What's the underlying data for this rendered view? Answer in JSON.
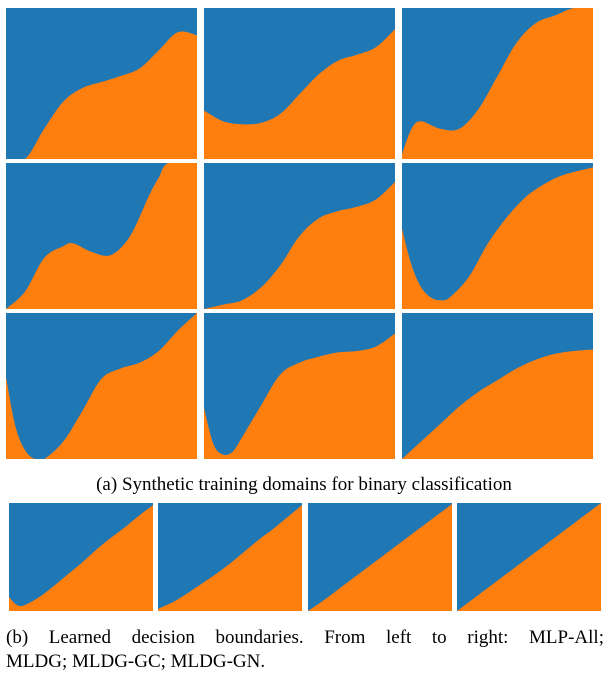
{
  "colors": {
    "class_a": "#1f77b4",
    "class_b": "#ff7f0e"
  },
  "figure_a": {
    "caption": "(a) Synthetic training domains for binary classification",
    "rows": 3,
    "cols": 3,
    "panels": [
      {
        "boundary": [
          [
            0,
            0.0
          ],
          [
            0.1,
            0.0
          ],
          [
            0.2,
            0.2
          ],
          [
            0.3,
            0.38
          ],
          [
            0.4,
            0.47
          ],
          [
            0.5,
            0.51
          ],
          [
            0.6,
            0.55
          ],
          [
            0.7,
            0.6
          ],
          [
            0.8,
            0.72
          ],
          [
            0.9,
            0.84
          ],
          [
            1.0,
            0.82
          ]
        ]
      },
      {
        "boundary": [
          [
            0,
            0.32
          ],
          [
            0.1,
            0.25
          ],
          [
            0.2,
            0.23
          ],
          [
            0.3,
            0.24
          ],
          [
            0.4,
            0.3
          ],
          [
            0.5,
            0.43
          ],
          [
            0.6,
            0.56
          ],
          [
            0.7,
            0.65
          ],
          [
            0.8,
            0.69
          ],
          [
            0.9,
            0.74
          ],
          [
            1.0,
            0.86
          ]
        ]
      },
      {
        "boundary": [
          [
            0,
            0.03
          ],
          [
            0.05,
            0.2
          ],
          [
            0.1,
            0.25
          ],
          [
            0.2,
            0.2
          ],
          [
            0.3,
            0.2
          ],
          [
            0.4,
            0.33
          ],
          [
            0.5,
            0.55
          ],
          [
            0.6,
            0.77
          ],
          [
            0.7,
            0.9
          ],
          [
            0.8,
            0.95
          ],
          [
            0.9,
            1.0
          ],
          [
            1.0,
            1.0
          ]
        ]
      },
      {
        "boundary": [
          [
            0,
            0.0
          ],
          [
            0.1,
            0.12
          ],
          [
            0.2,
            0.35
          ],
          [
            0.3,
            0.43
          ],
          [
            0.35,
            0.45
          ],
          [
            0.45,
            0.39
          ],
          [
            0.55,
            0.37
          ],
          [
            0.65,
            0.5
          ],
          [
            0.75,
            0.78
          ],
          [
            0.8,
            0.9
          ],
          [
            0.85,
            1.0
          ],
          [
            1.0,
            1.0
          ]
        ]
      },
      {
        "boundary": [
          [
            0,
            0.0
          ],
          [
            0.1,
            0.03
          ],
          [
            0.2,
            0.06
          ],
          [
            0.3,
            0.15
          ],
          [
            0.4,
            0.3
          ],
          [
            0.5,
            0.5
          ],
          [
            0.6,
            0.62
          ],
          [
            0.7,
            0.67
          ],
          [
            0.8,
            0.7
          ],
          [
            0.9,
            0.75
          ],
          [
            1.0,
            0.87
          ]
        ]
      },
      {
        "boundary": [
          [
            0,
            0.55
          ],
          [
            0.05,
            0.3
          ],
          [
            0.1,
            0.15
          ],
          [
            0.15,
            0.08
          ],
          [
            0.2,
            0.06
          ],
          [
            0.25,
            0.08
          ],
          [
            0.35,
            0.22
          ],
          [
            0.45,
            0.45
          ],
          [
            0.55,
            0.63
          ],
          [
            0.65,
            0.77
          ],
          [
            0.75,
            0.86
          ],
          [
            0.85,
            0.92
          ],
          [
            1.0,
            0.97
          ]
        ]
      },
      {
        "boundary": [
          [
            0,
            0.56
          ],
          [
            0.05,
            0.22
          ],
          [
            0.1,
            0.06
          ],
          [
            0.15,
            0.0
          ],
          [
            0.2,
            0.0
          ],
          [
            0.3,
            0.12
          ],
          [
            0.4,
            0.33
          ],
          [
            0.5,
            0.55
          ],
          [
            0.6,
            0.62
          ],
          [
            0.7,
            0.66
          ],
          [
            0.8,
            0.74
          ],
          [
            0.9,
            0.88
          ],
          [
            1.0,
            1.0
          ]
        ]
      },
      {
        "boundary": [
          [
            0,
            0.35
          ],
          [
            0.05,
            0.1
          ],
          [
            0.1,
            0.03
          ],
          [
            0.15,
            0.05
          ],
          [
            0.2,
            0.15
          ],
          [
            0.3,
            0.37
          ],
          [
            0.4,
            0.58
          ],
          [
            0.5,
            0.66
          ],
          [
            0.6,
            0.7
          ],
          [
            0.7,
            0.73
          ],
          [
            0.8,
            0.74
          ],
          [
            0.9,
            0.77
          ],
          [
            1.0,
            0.86
          ]
        ]
      },
      {
        "boundary": [
          [
            0,
            0.0
          ],
          [
            0.1,
            0.12
          ],
          [
            0.2,
            0.24
          ],
          [
            0.3,
            0.36
          ],
          [
            0.4,
            0.46
          ],
          [
            0.5,
            0.54
          ],
          [
            0.6,
            0.62
          ],
          [
            0.7,
            0.68
          ],
          [
            0.8,
            0.72
          ],
          [
            0.9,
            0.74
          ],
          [
            1.0,
            0.75
          ]
        ]
      }
    ]
  },
  "figure_b": {
    "caption_line1": "(b) Learned decision boundaries. From left to right: MLP-All;",
    "caption_line2": "MLDG; MLDG-GC; MLDG-GN.",
    "panels": [
      {
        "boundary": [
          [
            0,
            0.13
          ],
          [
            0.05,
            0.06
          ],
          [
            0.1,
            0.05
          ],
          [
            0.2,
            0.12
          ],
          [
            0.3,
            0.22
          ],
          [
            0.4,
            0.33
          ],
          [
            0.5,
            0.44
          ],
          [
            0.6,
            0.56
          ],
          [
            0.7,
            0.67
          ],
          [
            0.8,
            0.77
          ],
          [
            0.9,
            0.88
          ],
          [
            1.0,
            0.98
          ]
        ]
      },
      {
        "boundary": [
          [
            0,
            0.02
          ],
          [
            0.1,
            0.08
          ],
          [
            0.2,
            0.16
          ],
          [
            0.3,
            0.25
          ],
          [
            0.4,
            0.34
          ],
          [
            0.5,
            0.44
          ],
          [
            0.6,
            0.55
          ],
          [
            0.7,
            0.66
          ],
          [
            0.8,
            0.76
          ],
          [
            0.9,
            0.87
          ],
          [
            1.0,
            0.98
          ]
        ]
      },
      {
        "boundary": [
          [
            0,
            0.0
          ],
          [
            0.1,
            0.09
          ],
          [
            0.2,
            0.19
          ],
          [
            0.3,
            0.29
          ],
          [
            0.4,
            0.39
          ],
          [
            0.5,
            0.49
          ],
          [
            0.6,
            0.59
          ],
          [
            0.7,
            0.69
          ],
          [
            0.8,
            0.79
          ],
          [
            0.9,
            0.89
          ],
          [
            1.0,
            0.99
          ]
        ]
      },
      {
        "boundary": [
          [
            0,
            0.0
          ],
          [
            0.1,
            0.1
          ],
          [
            0.2,
            0.2
          ],
          [
            0.3,
            0.3
          ],
          [
            0.4,
            0.4
          ],
          [
            0.5,
            0.5
          ],
          [
            0.6,
            0.6
          ],
          [
            0.7,
            0.7
          ],
          [
            0.8,
            0.8
          ],
          [
            0.9,
            0.9
          ],
          [
            1.0,
            1.0
          ]
        ]
      }
    ]
  }
}
